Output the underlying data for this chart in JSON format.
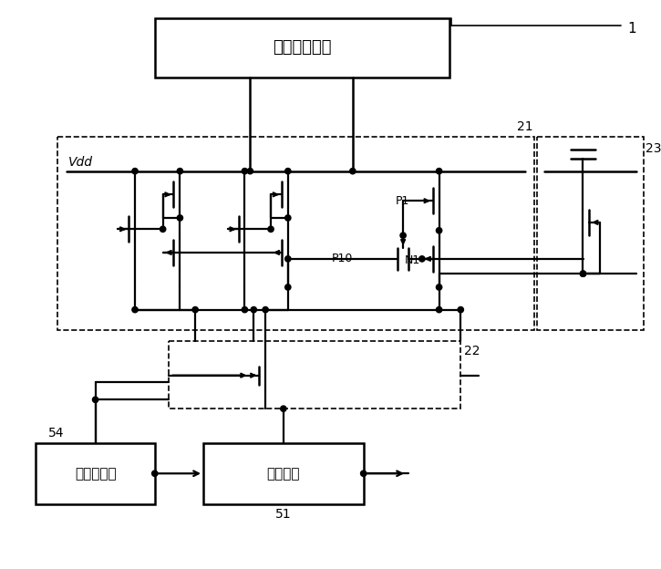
{
  "bg_color": "#ffffff",
  "box1_label": "压降估计模块",
  "box2_label": "预驱动模块",
  "box3_label": "驱动模块",
  "vdd_label": "Vdd",
  "label_1": "1",
  "label_21": "21",
  "label_22": "22",
  "label_23": "23",
  "label_51": "51",
  "label_54": "54",
  "label_P1": "P1",
  "label_P10": "P10",
  "label_N1": "N1",
  "fig_w": 7.25,
  "fig_h": 6.24,
  "dpi": 100
}
